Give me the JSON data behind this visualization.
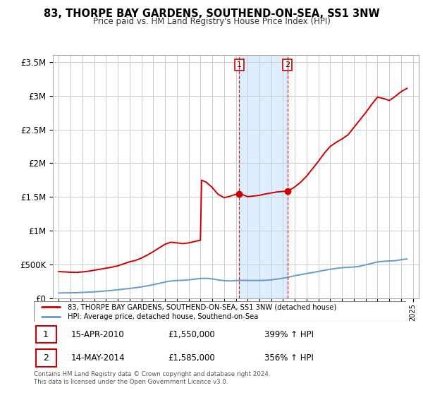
{
  "title": "83, THORPE BAY GARDENS, SOUTHEND-ON-SEA, SS1 3NW",
  "subtitle": "Price paid vs. HM Land Registry's House Price Index (HPI)",
  "footer": "Contains HM Land Registry data © Crown copyright and database right 2024.\nThis data is licensed under the Open Government Licence v3.0.",
  "legend_line1": "83, THORPE BAY GARDENS, SOUTHEND-ON-SEA, SS1 3NW (detached house)",
  "legend_line2": "HPI: Average price, detached house, Southend-on-Sea",
  "sale1_date": "15-APR-2010",
  "sale1_price": "£1,550,000",
  "sale1_hpi": "399% ↑ HPI",
  "sale1_year": 2010.29,
  "sale1_value": 1550000,
  "sale2_date": "14-MAY-2014",
  "sale2_price": "£1,585,000",
  "sale2_hpi": "356% ↑ HPI",
  "sale2_year": 2014.37,
  "sale2_value": 1585000,
  "red_color": "#cc0000",
  "blue_color": "#6699cc",
  "shade_color": "#ddeeff",
  "grid_color": "#cccccc",
  "ylim": [
    0,
    3600000
  ],
  "xlim": [
    1994.5,
    2025.5
  ],
  "yticks": [
    0,
    500000,
    1000000,
    1500000,
    2000000,
    2500000,
    3000000,
    3500000
  ],
  "ytick_labels": [
    "£0",
    "£500K",
    "£1M",
    "£1.5M",
    "£2M",
    "£2.5M",
    "£3M",
    "£3.5M"
  ],
  "red_x": [
    1995,
    1995.5,
    1996,
    1996.5,
    1997,
    1997.5,
    1998,
    1998.5,
    1999,
    1999.5,
    2000,
    2000.5,
    2001,
    2001.5,
    2002,
    2002.5,
    2003,
    2003.5,
    2004,
    2004.5,
    2005,
    2005.5,
    2006,
    2006.5,
    2007,
    2007.1,
    2007.5,
    2008,
    2008.5,
    2009,
    2009.5,
    2010,
    2010.29,
    2010.5,
    2011,
    2011.5,
    2012,
    2012.5,
    2013,
    2013.5,
    2014,
    2014.37,
    2014.5,
    2015,
    2015.5,
    2016,
    2016.5,
    2017,
    2017.5,
    2018,
    2018.5,
    2019,
    2019.5,
    2020,
    2020.5,
    2021,
    2021.5,
    2022,
    2022.5,
    2023,
    2023.5,
    2024,
    2024.5
  ],
  "red_y": [
    395000,
    390000,
    385000,
    382000,
    390000,
    400000,
    415000,
    430000,
    445000,
    460000,
    480000,
    510000,
    540000,
    560000,
    595000,
    640000,
    690000,
    745000,
    800000,
    830000,
    820000,
    810000,
    820000,
    840000,
    860000,
    1750000,
    1720000,
    1640000,
    1540000,
    1490000,
    1510000,
    1540000,
    1550000,
    1540000,
    1505000,
    1515000,
    1525000,
    1545000,
    1560000,
    1575000,
    1583000,
    1585000,
    1595000,
    1650000,
    1720000,
    1810000,
    1920000,
    2030000,
    2150000,
    2250000,
    2310000,
    2360000,
    2420000,
    2530000,
    2640000,
    2750000,
    2870000,
    2980000,
    2960000,
    2930000,
    2990000,
    3060000,
    3110000
  ],
  "blue_x": [
    1995,
    1995.5,
    1996,
    1996.5,
    1997,
    1997.5,
    1998,
    1998.5,
    1999,
    1999.5,
    2000,
    2000.5,
    2001,
    2001.5,
    2002,
    2002.5,
    2003,
    2003.5,
    2004,
    2004.5,
    2005,
    2005.5,
    2006,
    2006.5,
    2007,
    2007.5,
    2008,
    2008.5,
    2009,
    2009.5,
    2010,
    2010.5,
    2011,
    2011.5,
    2012,
    2012.5,
    2013,
    2013.5,
    2014,
    2014.5,
    2015,
    2015.5,
    2016,
    2016.5,
    2017,
    2017.5,
    2018,
    2018.5,
    2019,
    2019.5,
    2020,
    2020.5,
    2021,
    2021.5,
    2022,
    2022.5,
    2023,
    2023.5,
    2024,
    2024.5
  ],
  "blue_y": [
    78000,
    79000,
    80000,
    82000,
    86000,
    90000,
    95000,
    101000,
    108000,
    116000,
    125000,
    135000,
    145000,
    156000,
    168000,
    183000,
    200000,
    220000,
    240000,
    255000,
    263000,
    265000,
    272000,
    282000,
    293000,
    295000,
    287000,
    272000,
    260000,
    256000,
    261000,
    265000,
    264000,
    263000,
    263000,
    265000,
    273000,
    284000,
    297000,
    313000,
    334000,
    350000,
    366000,
    380000,
    398000,
    414000,
    429000,
    442000,
    452000,
    458000,
    463000,
    474000,
    495000,
    516000,
    537000,
    547000,
    552000,
    556000,
    571000,
    582000
  ]
}
